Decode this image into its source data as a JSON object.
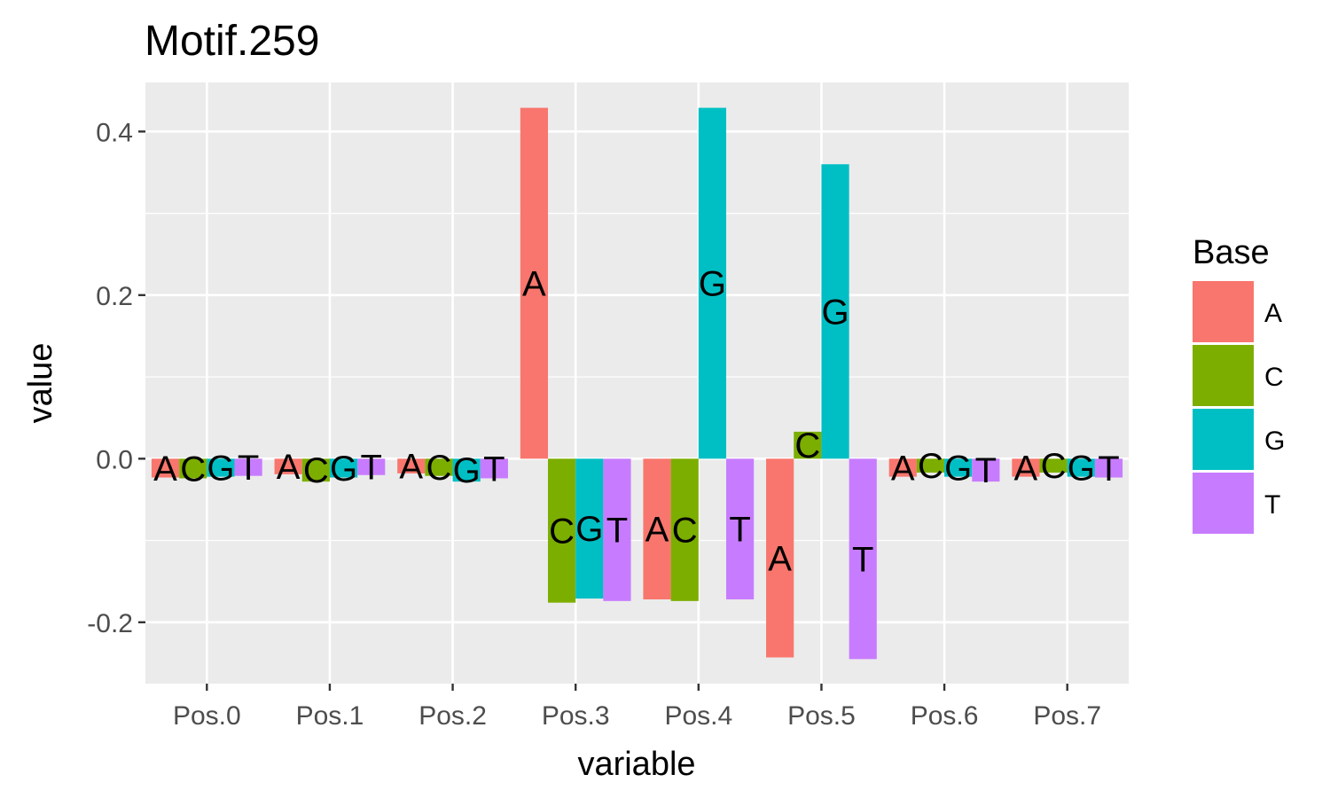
{
  "chart_data": {
    "type": "bar",
    "title": "Motif.259",
    "xlabel": "variable",
    "ylabel": "value",
    "categories": [
      "Pos.0",
      "Pos.1",
      "Pos.2",
      "Pos.3",
      "Pos.4",
      "Pos.5",
      "Pos.6",
      "Pos.7"
    ],
    "ylim": [
      -0.275,
      0.46
    ],
    "yticks": [
      -0.2,
      0.0,
      0.2,
      0.4
    ],
    "ytick_labels": [
      "-0.2",
      "0.0",
      "0.2",
      "0.4"
    ],
    "grid": true,
    "legend": {
      "title": "Base",
      "position": "right"
    },
    "series": [
      {
        "name": "A",
        "color": "#F8766D",
        "values": [
          -0.023,
          -0.019,
          -0.018,
          0.429,
          -0.172,
          -0.243,
          -0.022,
          -0.022
        ]
      },
      {
        "name": "C",
        "color": "#7CAE00",
        "values": [
          -0.024,
          -0.028,
          -0.021,
          -0.176,
          -0.174,
          0.033,
          -0.017,
          -0.017
        ]
      },
      {
        "name": "G",
        "color": "#00BFC4",
        "values": [
          -0.022,
          -0.023,
          -0.028,
          -0.171,
          0.429,
          0.36,
          -0.022,
          -0.022
        ]
      },
      {
        "name": "T",
        "color": "#C77CFF",
        "values": [
          -0.021,
          -0.02,
          -0.024,
          -0.174,
          -0.172,
          -0.245,
          -0.028,
          -0.023
        ]
      }
    ]
  }
}
